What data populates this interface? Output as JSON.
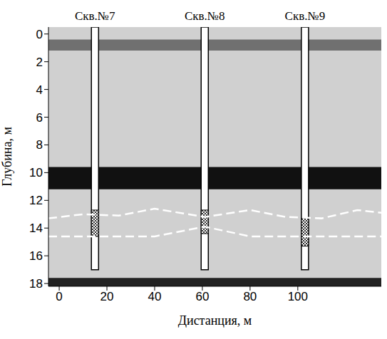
{
  "chart_data": {
    "type": "radargram",
    "xlabel": "Дистанция, м",
    "ylabel": "Глубина, м",
    "xlim": [
      -4.5,
      135
    ],
    "xticks": [
      0,
      20,
      40,
      60,
      80,
      100
    ],
    "ylim": [
      -0.5,
      18.2
    ],
    "yticks": [
      0,
      2,
      4,
      6,
      8,
      10,
      12,
      14,
      16,
      18
    ],
    "color": "#d0d0d0",
    "reflectors": [
      {
        "top": 0.4,
        "bottom": 1.2,
        "color": "#707070"
      },
      {
        "top": 9.6,
        "bottom": 11.2,
        "color": "#111111"
      },
      {
        "top": 17.6,
        "bottom": 18.2,
        "color": "#222222"
      }
    ],
    "boreholes": [
      {
        "name": "Скв.№7",
        "x": 15,
        "bottom": 17,
        "screen": [
          12.7,
          14.6
        ]
      },
      {
        "name": "Скв.№8",
        "x": 61,
        "bottom": 17,
        "screen": [
          12.7,
          14.4
        ]
      },
      {
        "name": "Скв.№9",
        "x": 103,
        "bottom": 17,
        "screen": [
          13.3,
          15.3
        ]
      }
    ],
    "series": [
      {
        "color": "#ffffff",
        "line_style": "dashed",
        "x": [
          -4.5,
          10,
          25,
          40,
          61,
          80,
          95,
          110,
          125,
          135
        ],
        "values": [
          13.3,
          13.0,
          13.1,
          12.6,
          13.2,
          12.7,
          13.2,
          13.3,
          12.7,
          12.9
        ]
      },
      {
        "color": "#ffffff",
        "line_style": "dashed",
        "x": [
          -4.5,
          20,
          40,
          61,
          80,
          100,
          120,
          135
        ],
        "values": [
          14.6,
          14.6,
          14.6,
          13.9,
          14.6,
          14.6,
          14.6,
          14.6
        ]
      }
    ]
  }
}
